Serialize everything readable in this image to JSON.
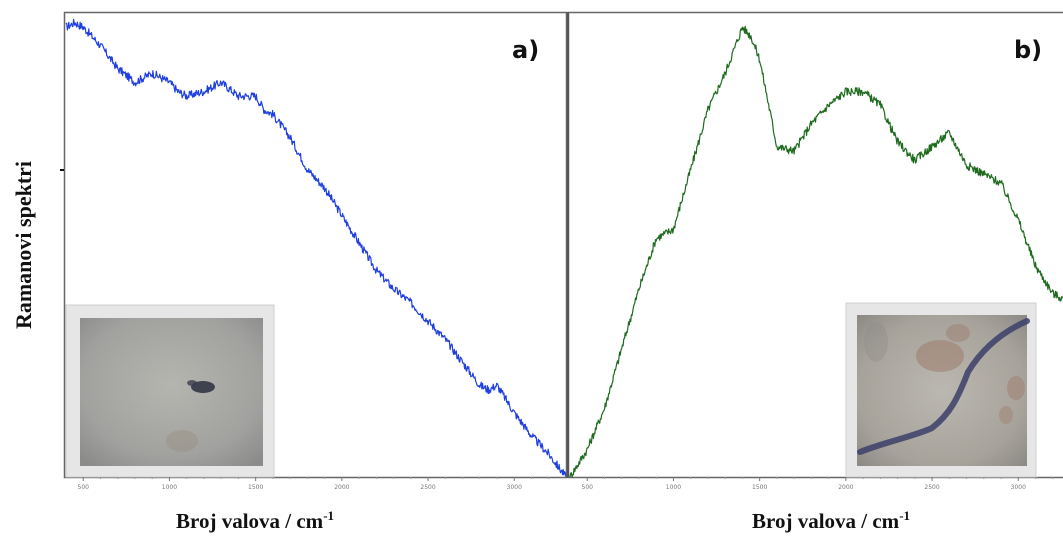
{
  "figure": {
    "ylabel": "Ramanovi spektri",
    "xlabel_text": "Broj valova / cm",
    "xlabel_sup": "-1"
  },
  "chart_data": [
    {
      "type": "line",
      "panel_label": "a)",
      "color": "#1f3fe0",
      "xlabel": "Broj valova / cm-1",
      "ylabel": "Ramanovi spektri",
      "xlim": [
        400,
        3300
      ],
      "ylim": [
        0,
        1
      ],
      "x_ticks": [
        500,
        1000,
        1500,
        2000,
        2500,
        3000
      ],
      "x_tick_labels": [
        "500",
        "1000",
        "1500",
        "2000",
        "2500",
        "3000"
      ],
      "inset": "microscope-image-sample-a",
      "x": [
        400,
        450,
        500,
        600,
        700,
        800,
        900,
        1000,
        1050,
        1100,
        1200,
        1300,
        1400,
        1500,
        1550,
        1600,
        1700,
        1800,
        1900,
        2000,
        2100,
        2200,
        2300,
        2400,
        2500,
        2600,
        2700,
        2800,
        2850,
        2900,
        3000,
        3100,
        3200,
        3300
      ],
      "values": [
        0.98,
        0.99,
        0.98,
        0.94,
        0.89,
        0.86,
        0.88,
        0.86,
        0.84,
        0.83,
        0.84,
        0.86,
        0.83,
        0.83,
        0.8,
        0.79,
        0.74,
        0.67,
        0.63,
        0.57,
        0.51,
        0.45,
        0.41,
        0.38,
        0.34,
        0.3,
        0.25,
        0.2,
        0.19,
        0.2,
        0.14,
        0.09,
        0.05,
        0.0
      ]
    },
    {
      "type": "line",
      "panel_label": "b)",
      "color": "#1e6b1e",
      "xlabel": "Broj valova / cm-1",
      "ylabel": "Ramanovi spektri",
      "xlim": [
        400,
        3300
      ],
      "ylim": [
        0,
        1
      ],
      "x_ticks": [
        500,
        1000,
        1500,
        2000,
        2500,
        3000
      ],
      "x_tick_labels": [
        "500",
        "1000",
        "1500",
        "2000",
        "2500",
        "3000"
      ],
      "inset": "microscope-image-sample-b",
      "x": [
        400,
        500,
        600,
        700,
        800,
        900,
        1000,
        1100,
        1200,
        1300,
        1400,
        1450,
        1500,
        1600,
        1700,
        1800,
        1900,
        2000,
        2100,
        2200,
        2300,
        2400,
        2500,
        2600,
        2700,
        2800,
        2900,
        3000,
        3100,
        3200,
        3300
      ],
      "values": [
        0.0,
        0.06,
        0.15,
        0.28,
        0.41,
        0.52,
        0.54,
        0.67,
        0.8,
        0.88,
        0.98,
        0.96,
        0.91,
        0.72,
        0.71,
        0.77,
        0.81,
        0.84,
        0.84,
        0.81,
        0.73,
        0.69,
        0.72,
        0.75,
        0.68,
        0.66,
        0.64,
        0.56,
        0.46,
        0.4,
        0.38
      ]
    }
  ]
}
